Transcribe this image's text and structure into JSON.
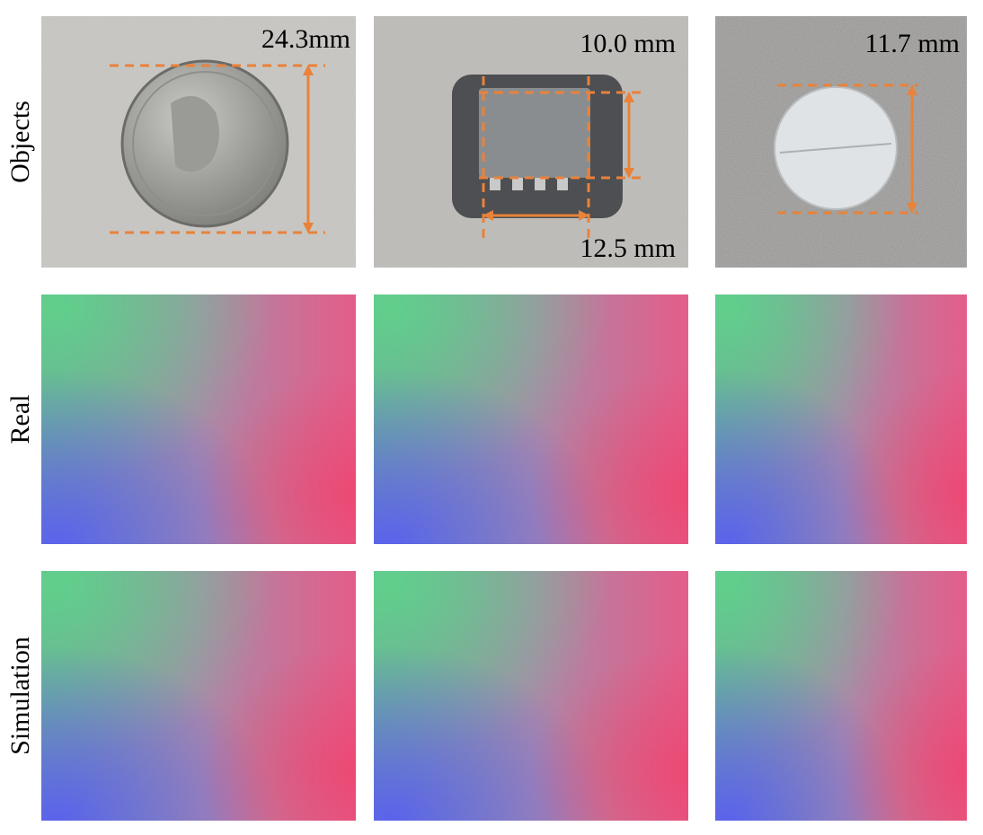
{
  "row_labels": [
    "Objects",
    "Real",
    "Simulation"
  ],
  "measurements": {
    "coin_diameter": "24.3mm",
    "chip_height": "10.0 mm",
    "chip_width": "12.5 mm",
    "pill_diameter": "11.7 mm"
  }
}
